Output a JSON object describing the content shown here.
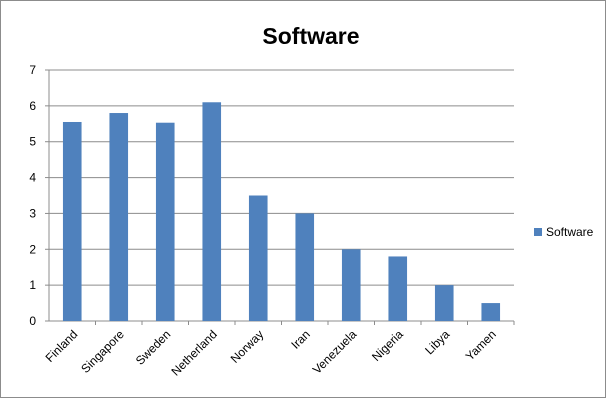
{
  "chart_data": {
    "type": "bar",
    "title": "Software",
    "xlabel": "",
    "ylabel": "",
    "categories": [
      "Finland",
      "Singapore",
      "Sweden",
      "Netherland",
      "Norway",
      "Iran",
      "Venezuela",
      "Nigeria",
      "Libya",
      "Yamen"
    ],
    "series": [
      {
        "name": "Software",
        "color": "#4f81bd",
        "values": [
          5.55,
          5.8,
          5.53,
          6.1,
          3.5,
          3.0,
          2.0,
          1.8,
          1.0,
          0.5
        ]
      }
    ],
    "ylim": [
      0,
      7
    ],
    "yticks": [
      "0",
      "1",
      "2",
      "3",
      "4",
      "5",
      "6",
      "7"
    ],
    "grid": true,
    "legend_position": "right"
  }
}
